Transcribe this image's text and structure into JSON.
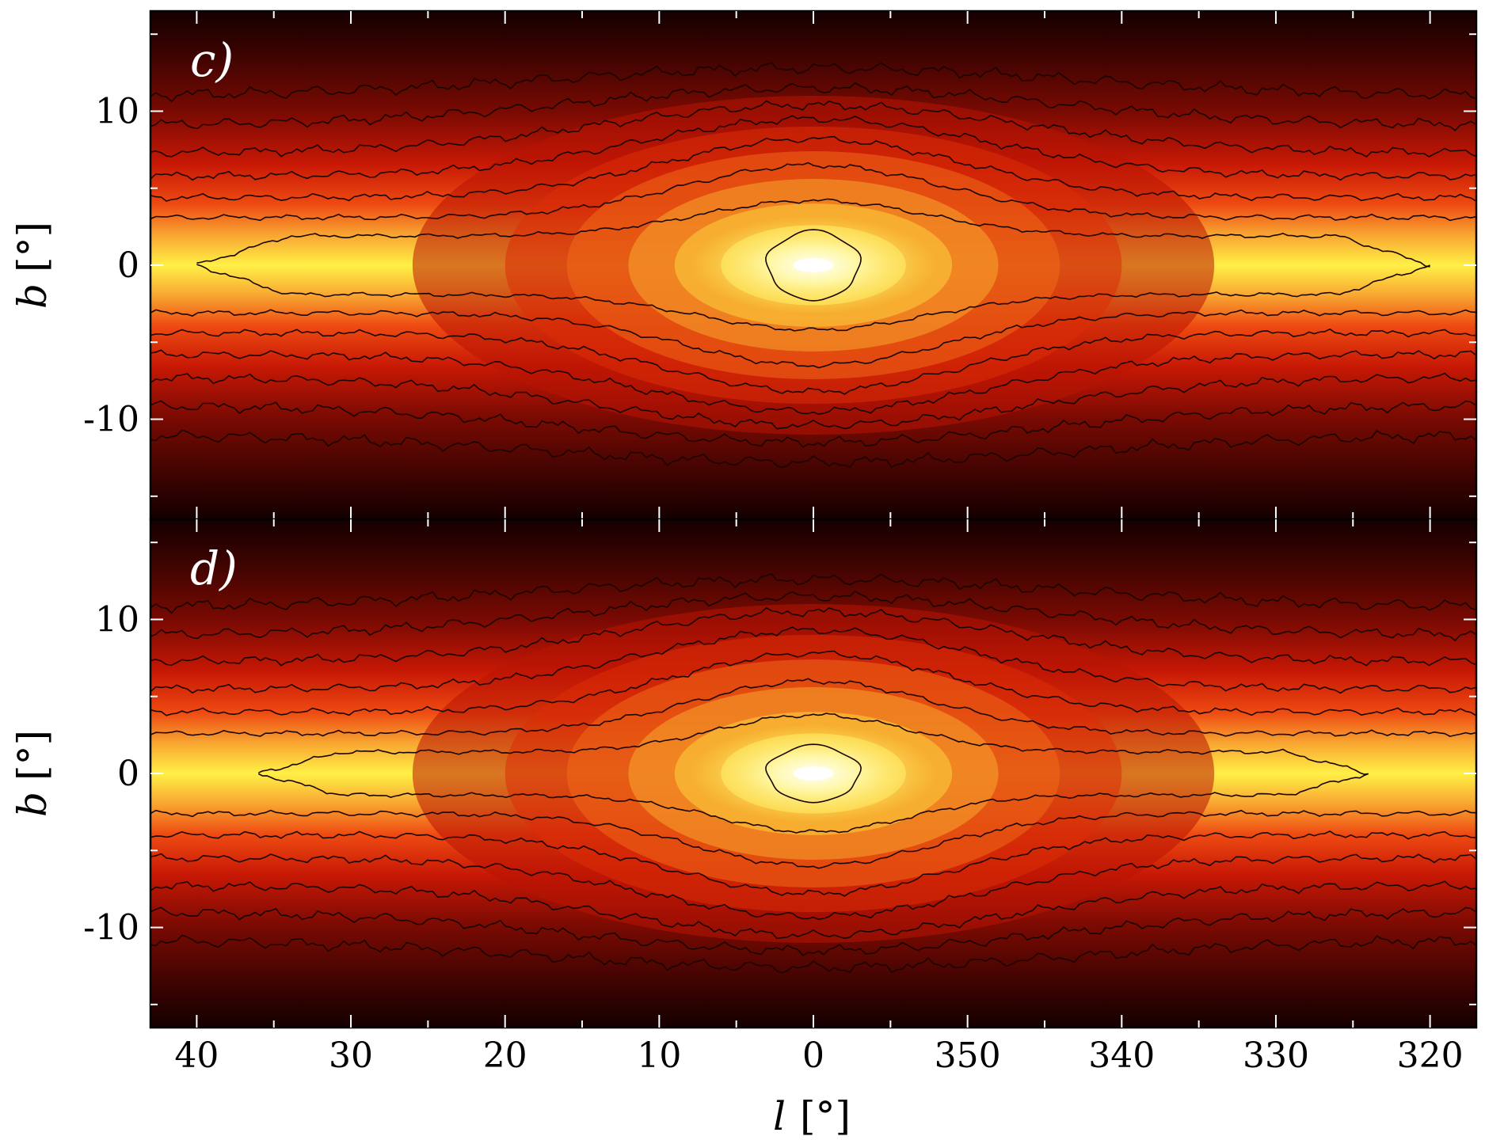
{
  "figure": {
    "xlabel": {
      "symbol": "l",
      "unit": "[°]"
    },
    "colormap": "hot (black → red → yellow → white)",
    "shared_x_axis": true
  },
  "chart_data": [
    {
      "type": "heatmap",
      "panel_label": "c)",
      "title": "",
      "xlabel": "l [°]",
      "ylabel": "b [°]",
      "ylabel_parts": {
        "symbol": "b",
        "unit": "[°]"
      },
      "xlim": [
        43,
        -43
      ],
      "ylim": [
        -16.5,
        16.5
      ],
      "xticks_data": [
        40,
        30,
        20,
        10,
        0,
        -10,
        -20,
        -30,
        -40
      ],
      "xtick_labels": [
        "40",
        "30",
        "20",
        "10",
        "0",
        "350",
        "340",
        "330",
        "320"
      ],
      "yticks": [
        10,
        0,
        -10
      ],
      "ytick_labels": [
        "10",
        "0",
        "-10"
      ],
      "peak": {
        "l": 0,
        "b": 0
      },
      "contours": [
        {
          "type": "blob",
          "width_l": 3,
          "height_b": 2.2
        },
        {
          "type": "lens",
          "plane_halfwidth_b": 1.9,
          "bulge_halfheight_b": 4.2,
          "bulge_l": 13,
          "tip_l": 40
        },
        {
          "type": "lens",
          "plane_halfwidth_b": 3.1,
          "bulge_halfheight_b": 6.5,
          "bulge_l": 15,
          "tip_l": 44
        },
        {
          "type": "lens",
          "plane_halfwidth_b": 4.4,
          "bulge_halfheight_b": 8.2,
          "bulge_l": 17,
          "tip_l": 44
        },
        {
          "type": "lens",
          "plane_halfwidth_b": 5.8,
          "bulge_halfheight_b": 9.5,
          "bulge_l": 20,
          "tip_l": 44
        },
        {
          "type": "lens",
          "plane_halfwidth_b": 7.3,
          "bulge_halfheight_b": 10.4,
          "bulge_l": 24,
          "tip_l": 44
        },
        {
          "type": "lens",
          "plane_halfwidth_b": 9.1,
          "bulge_halfheight_b": 11.5,
          "bulge_l": 27,
          "tip_l": 44
        },
        {
          "type": "lens",
          "plane_halfwidth_b": 11.0,
          "bulge_halfheight_b": 12.8,
          "bulge_l": 30,
          "tip_l": 44
        }
      ]
    },
    {
      "type": "heatmap",
      "panel_label": "d)",
      "title": "",
      "xlabel": "l [°]",
      "ylabel": "b [°]",
      "ylabel_parts": {
        "symbol": "b",
        "unit": "[°]"
      },
      "xlim": [
        43,
        -43
      ],
      "ylim": [
        -16.5,
        16.5
      ],
      "xticks_data": [
        40,
        30,
        20,
        10,
        0,
        -10,
        -20,
        -30,
        -40
      ],
      "xtick_labels": [
        "40",
        "30",
        "20",
        "10",
        "0",
        "350",
        "340",
        "330",
        "320"
      ],
      "yticks": [
        10,
        0,
        -10
      ],
      "ytick_labels": [
        "10",
        "0",
        "-10"
      ],
      "peak": {
        "l": 0,
        "b": 0
      },
      "contours": [
        {
          "type": "blob",
          "width_l": 3,
          "height_b": 1.8
        },
        {
          "type": "lens",
          "plane_halfwidth_b": 1.4,
          "bulge_halfheight_b": 3.8,
          "bulge_l": 11,
          "tip_l": 36
        },
        {
          "type": "lens",
          "plane_halfwidth_b": 2.6,
          "bulge_halfheight_b": 6.0,
          "bulge_l": 14,
          "tip_l": 44
        },
        {
          "type": "lens",
          "plane_halfwidth_b": 4.0,
          "bulge_halfheight_b": 7.8,
          "bulge_l": 16,
          "tip_l": 44
        },
        {
          "type": "lens",
          "plane_halfwidth_b": 5.5,
          "bulge_halfheight_b": 9.3,
          "bulge_l": 19,
          "tip_l": 44
        },
        {
          "type": "lens",
          "plane_halfwidth_b": 7.3,
          "bulge_halfheight_b": 10.5,
          "bulge_l": 22,
          "tip_l": 44
        },
        {
          "type": "lens",
          "plane_halfwidth_b": 9.0,
          "bulge_halfheight_b": 11.5,
          "bulge_l": 26,
          "tip_l": 44
        },
        {
          "type": "lens",
          "plane_halfwidth_b": 10.8,
          "bulge_halfheight_b": 12.6,
          "bulge_l": 30,
          "tip_l": 44
        }
      ]
    }
  ]
}
